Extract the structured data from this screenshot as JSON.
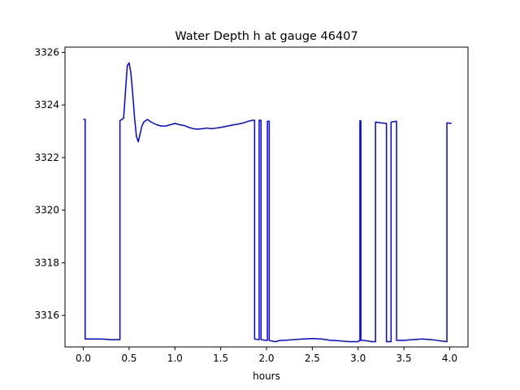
{
  "chart_data": {
    "type": "line",
    "title": "Water Depth h at gauge 46407",
    "xlabel": "hours",
    "ylabel": "",
    "xlim": [
      -0.2,
      4.2
    ],
    "ylim": [
      3314.8,
      3326.2
    ],
    "xticks": [
      0.0,
      0.5,
      1.0,
      1.5,
      2.0,
      2.5,
      3.0,
      3.5,
      4.0
    ],
    "xtick_labels": [
      "0.0",
      "0.5",
      "1.0",
      "1.5",
      "2.0",
      "2.5",
      "3.0",
      "3.5",
      "4.0"
    ],
    "yticks": [
      3316,
      3318,
      3320,
      3322,
      3324,
      3326
    ],
    "ytick_labels": [
      "3316",
      "3318",
      "3320",
      "3322",
      "3324",
      "3326"
    ],
    "grid": false,
    "series": [
      {
        "color": "#0000ff",
        "x": [
          0.0,
          0.02,
          0.02,
          0.1,
          0.2,
          0.3,
          0.39,
          0.4,
          0.4,
          0.44,
          0.46,
          0.48,
          0.5,
          0.52,
          0.54,
          0.56,
          0.58,
          0.6,
          0.62,
          0.64,
          0.66,
          0.7,
          0.74,
          0.8,
          0.85,
          0.9,
          0.95,
          1.0,
          1.05,
          1.1,
          1.15,
          1.2,
          1.25,
          1.3,
          1.35,
          1.4,
          1.45,
          1.5,
          1.55,
          1.6,
          1.65,
          1.7,
          1.75,
          1.8,
          1.85,
          1.87,
          1.87,
          1.91,
          1.92,
          1.92,
          1.94,
          1.94,
          1.99,
          2.01,
          2.01,
          2.03,
          2.03,
          2.05,
          2.1,
          2.15,
          2.2,
          2.3,
          2.4,
          2.5,
          2.6,
          2.7,
          2.8,
          2.9,
          3.0,
          3.02,
          3.02,
          3.03,
          3.03,
          3.05,
          3.1,
          3.15,
          3.19,
          3.19,
          3.25,
          3.31,
          3.31,
          3.36,
          3.36,
          3.42,
          3.42,
          3.5,
          3.6,
          3.7,
          3.8,
          3.9,
          3.97,
          3.97,
          4.02
        ],
        "y": [
          3323.45,
          3323.45,
          3315.1,
          3315.1,
          3315.1,
          3315.08,
          3315.08,
          3315.08,
          3323.4,
          3323.5,
          3324.5,
          3325.5,
          3325.6,
          3325.2,
          3324.4,
          3323.5,
          3322.8,
          3322.6,
          3322.9,
          3323.2,
          3323.35,
          3323.45,
          3323.35,
          3323.25,
          3323.2,
          3323.2,
          3323.25,
          3323.3,
          3323.25,
          3323.22,
          3323.15,
          3323.1,
          3323.08,
          3323.1,
          3323.12,
          3323.1,
          3323.12,
          3323.15,
          3323.18,
          3323.22,
          3323.25,
          3323.28,
          3323.32,
          3323.38,
          3323.42,
          3323.42,
          3315.1,
          3315.08,
          3315.08,
          3323.42,
          3323.42,
          3315.08,
          3315.05,
          3315.05,
          3323.38,
          3323.38,
          3315.05,
          3315.03,
          3315.0,
          3315.05,
          3315.05,
          3315.08,
          3315.1,
          3315.12,
          3315.1,
          3315.05,
          3315.03,
          3315.0,
          3315.0,
          3315.05,
          3323.4,
          3323.4,
          3315.05,
          3315.05,
          3315.03,
          3315.0,
          3315.0,
          3323.35,
          3323.32,
          3323.3,
          3315.0,
          3315.0,
          3323.35,
          3323.38,
          3315.05,
          3315.05,
          3315.08,
          3315.1,
          3315.08,
          3315.03,
          3315.0,
          3323.32,
          3323.3
        ]
      }
    ]
  }
}
